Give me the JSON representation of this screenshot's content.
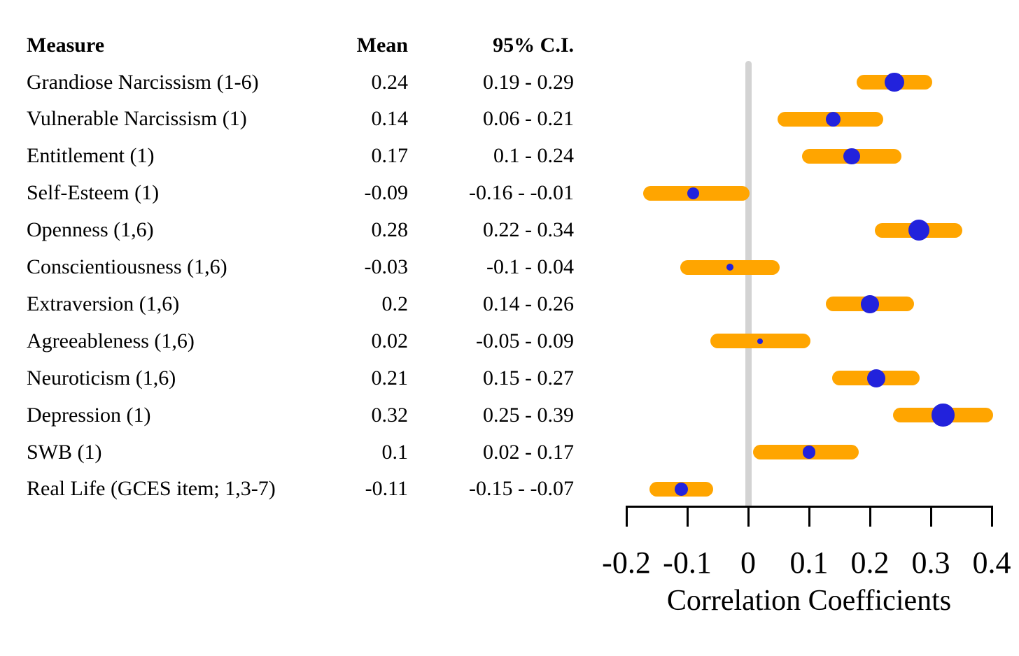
{
  "table": {
    "headers": {
      "measure": "Measure",
      "mean": "Mean",
      "ci": "95% C.I."
    }
  },
  "chart_data": {
    "type": "forest",
    "title": "",
    "xlabel": "Correlation Coefficients",
    "xlim": [
      -0.2,
      0.4
    ],
    "xticks": [
      -0.2,
      -0.1,
      0,
      0.1,
      0.2,
      0.3,
      0.4
    ],
    "xtick_labels": [
      "-0.2",
      "-0.1",
      "0",
      "0.1",
      "0.2",
      "0.3",
      "0.4"
    ],
    "zero_reference_line": 0,
    "grid": false,
    "legend": false,
    "measures": [
      {
        "label": "Grandiose Narcissism (1-6)",
        "mean": 0.24,
        "ci_low": 0.19,
        "ci_high": 0.29,
        "mean_text": "0.24",
        "ci_text": "0.19 - 0.29"
      },
      {
        "label": "Vulnerable Narcissism (1)",
        "mean": 0.14,
        "ci_low": 0.06,
        "ci_high": 0.21,
        "mean_text": "0.14",
        "ci_text": "0.06 - 0.21"
      },
      {
        "label": "Entitlement (1)",
        "mean": 0.17,
        "ci_low": 0.1,
        "ci_high": 0.24,
        "mean_text": "0.17",
        "ci_text": "0.1 - 0.24"
      },
      {
        "label": "Self-Esteem (1)",
        "mean": -0.09,
        "ci_low": -0.16,
        "ci_high": -0.01,
        "mean_text": "-0.09",
        "ci_text": "-0.16 - -0.01"
      },
      {
        "label": "Openness (1,6)",
        "mean": 0.28,
        "ci_low": 0.22,
        "ci_high": 0.34,
        "mean_text": "0.28",
        "ci_text": "0.22 - 0.34"
      },
      {
        "label": "Conscientiousness (1,6)",
        "mean": -0.03,
        "ci_low": -0.1,
        "ci_high": 0.04,
        "mean_text": "-0.03",
        "ci_text": "-0.1 - 0.04"
      },
      {
        "label": "Extraversion (1,6)",
        "mean": 0.2,
        "ci_low": 0.14,
        "ci_high": 0.26,
        "mean_text": "0.2",
        "ci_text": "0.14 - 0.26"
      },
      {
        "label": "Agreeableness (1,6)",
        "mean": 0.02,
        "ci_low": -0.05,
        "ci_high": 0.09,
        "mean_text": "0.02",
        "ci_text": "-0.05 - 0.09"
      },
      {
        "label": "Neuroticism (1,6)",
        "mean": 0.21,
        "ci_low": 0.15,
        "ci_high": 0.27,
        "mean_text": "0.21",
        "ci_text": "0.15 - 0.27"
      },
      {
        "label": "Depression (1)",
        "mean": 0.32,
        "ci_low": 0.25,
        "ci_high": 0.39,
        "mean_text": "0.32",
        "ci_text": "0.25 - 0.39"
      },
      {
        "label": "SWB (1)",
        "mean": 0.1,
        "ci_low": 0.02,
        "ci_high": 0.17,
        "mean_text": "0.1",
        "ci_text": "0.02 - 0.17"
      },
      {
        "label": "Real Life (GCES item; 1,3-7)",
        "mean": -0.11,
        "ci_low": -0.15,
        "ci_high": -0.07,
        "mean_text": "-0.11",
        "ci_text": "-0.15 - -0.07"
      }
    ]
  },
  "colors": {
    "ci_bar": "#ffa500",
    "mean_dot": "#2222dc",
    "zero_line": "#d3d3d3",
    "axis": "#000000",
    "text": "#000000",
    "background": "#ffffff"
  }
}
